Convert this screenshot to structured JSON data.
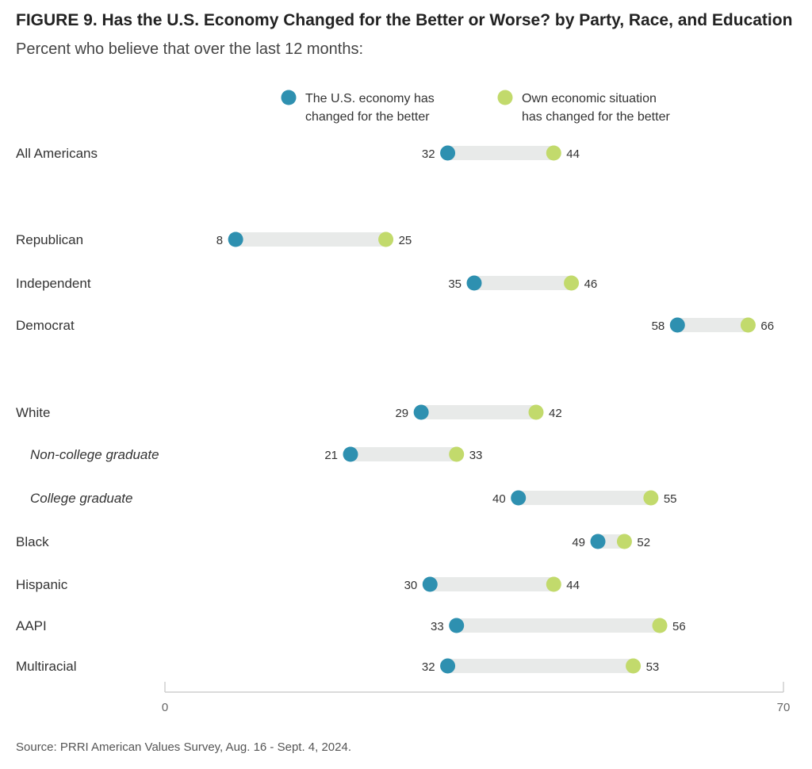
{
  "title": "FIGURE 9.  Has the U.S. Economy Changed for the Better or Worse? by Party, Race, and Education",
  "subtitle": "Percent who believe that over the last 12 months:",
  "source": "Source: PRRI American Values Survey, Aug. 16 - Sept. 4, 2024.",
  "colors": {
    "economy": "#2e90b0",
    "own": "#c2da6c",
    "bar": "#e8eae9",
    "axis": "#cfcfcf"
  },
  "chart_data": {
    "type": "dumbbell",
    "xlim": [
      0,
      70
    ],
    "ticks": [
      "0",
      "70"
    ],
    "grid": false,
    "legend_position": "top",
    "series": [
      {
        "name": [
          "The U.S. economy has",
          "changed for the better"
        ],
        "key": "economy"
      },
      {
        "name": [
          "Own economic situation",
          "has changed for the better"
        ],
        "key": "own"
      }
    ],
    "rows": [
      {
        "label": "All Americans",
        "economy": 32,
        "own": 44,
        "italic": false
      },
      {
        "label": "Republican",
        "economy": 8,
        "own": 25,
        "italic": false
      },
      {
        "label": "Independent",
        "economy": 35,
        "own": 46,
        "italic": false
      },
      {
        "label": "Democrat",
        "economy": 58,
        "own": 66,
        "italic": false
      },
      {
        "label": "White",
        "economy": 29,
        "own": 42,
        "italic": false
      },
      {
        "label": "Non-college graduate",
        "economy": 21,
        "own": 33,
        "italic": true
      },
      {
        "label": "College graduate",
        "economy": 40,
        "own": 55,
        "italic": true
      },
      {
        "label": "Black",
        "economy": 49,
        "own": 52,
        "italic": false
      },
      {
        "label": "Hispanic",
        "economy": 30,
        "own": 44,
        "italic": false
      },
      {
        "label": "AAPI",
        "economy": 33,
        "own": 56,
        "italic": false
      },
      {
        "label": "Multiracial",
        "economy": 32,
        "own": 53,
        "italic": false
      }
    ]
  }
}
